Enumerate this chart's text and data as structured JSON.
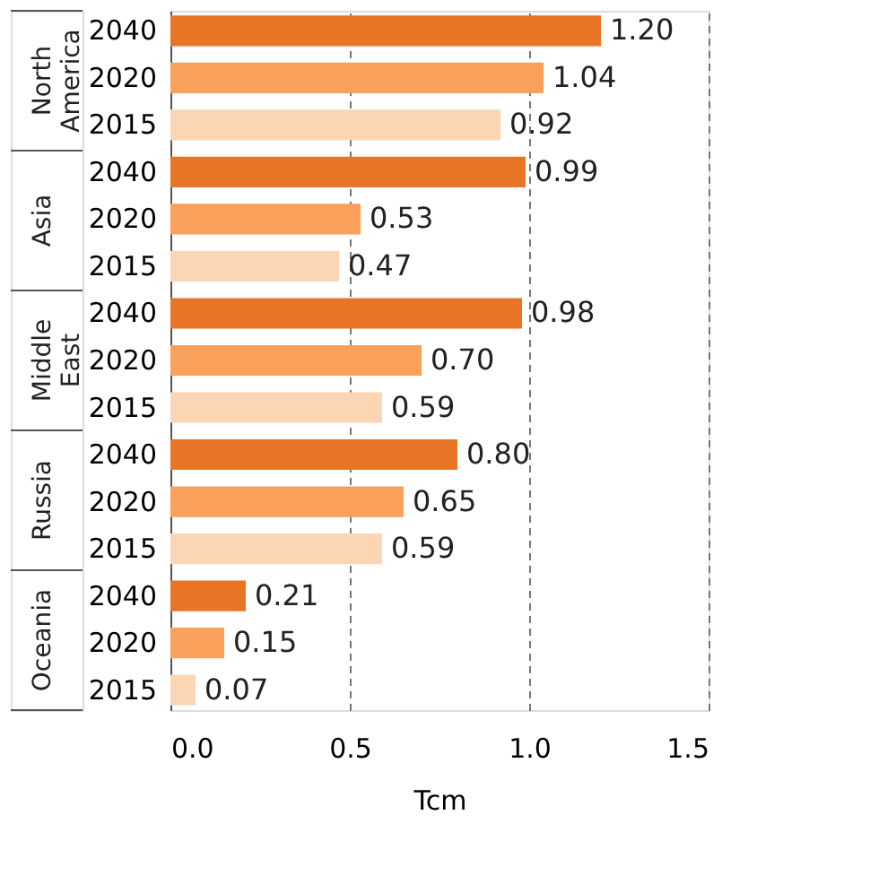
{
  "chart_data": {
    "type": "bar",
    "orientation": "horizontal",
    "xlabel": "Tcm",
    "categories": [
      "2040",
      "2020",
      "2015",
      "2040",
      "2020",
      "2015",
      "2040",
      "2020",
      "2015",
      "2040",
      "2020",
      "2015",
      "2040",
      "2020",
      "2015"
    ],
    "values": [
      1.2,
      1.04,
      0.92,
      0.99,
      0.53,
      0.47,
      0.98,
      0.7,
      0.59,
      0.8,
      0.65,
      0.59,
      0.21,
      0.15,
      0.07
    ],
    "value_labels": [
      "1.20",
      "1.04",
      "0.92",
      "0.99",
      "0.53",
      "0.47",
      "0.98",
      "0.70",
      "0.59",
      "0.80",
      "0.65",
      "0.59",
      "0.21",
      "0.15",
      "0.07"
    ],
    "colors": [
      "#e87425",
      "#f9a05a",
      "#fcd5b5",
      "#e87425",
      "#f9a05a",
      "#fcd5b5",
      "#e87425",
      "#f9a05a",
      "#fcd5b5",
      "#e87425",
      "#f9a05a",
      "#fcd5b5",
      "#e87425",
      "#f9a05a",
      "#fcd5b5"
    ],
    "annotations": [
      "North America",
      "Asia",
      "Middle East",
      "Russia",
      "Oceania"
    ],
    "xlim": [
      0,
      1.5
    ],
    "xticks": [
      {
        "value": 0,
        "label": "0.0"
      },
      {
        "value": 0.5,
        "label": "0.5"
      },
      {
        "value": 1,
        "label": "1.0"
      },
      {
        "value": 1.5,
        "label": "1.5"
      }
    ],
    "grid": "x"
  }
}
